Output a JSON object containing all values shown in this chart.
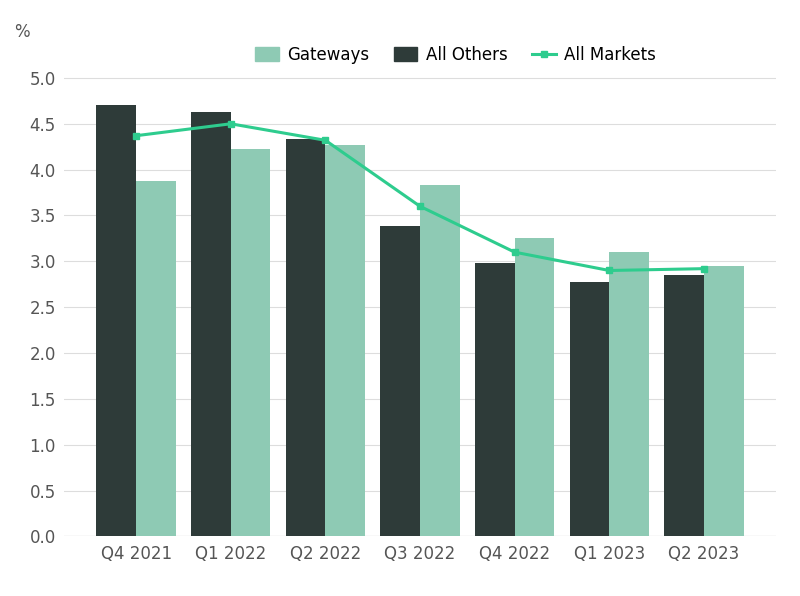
{
  "categories": [
    "Q4 2021",
    "Q1 2022",
    "Q2 2022",
    "Q3 2022",
    "Q4 2022",
    "Q1 2023",
    "Q2 2023"
  ],
  "gateways": [
    3.88,
    4.22,
    4.27,
    3.83,
    3.25,
    3.1,
    2.95
  ],
  "all_others": [
    4.7,
    4.63,
    4.33,
    3.38,
    2.98,
    2.77,
    2.85
  ],
  "all_markets": [
    4.37,
    4.5,
    4.32,
    3.6,
    3.1,
    2.9,
    2.92
  ],
  "gateways_color": "#8ECAB4",
  "all_others_color": "#2E3B39",
  "all_markets_color": "#2ECC8E",
  "background_color": "#FFFFFF",
  "grid_color": "#DDDDDD",
  "ylabel": "%",
  "ylim": [
    0.0,
    5.2
  ],
  "yticks": [
    0.0,
    0.5,
    1.0,
    1.5,
    2.0,
    2.5,
    3.0,
    3.5,
    4.0,
    4.5,
    5.0
  ],
  "legend_labels": [
    "Gateways",
    "All Others",
    "All Markets"
  ],
  "bar_width": 0.42,
  "tick_fontsize": 12,
  "legend_fontsize": 12
}
